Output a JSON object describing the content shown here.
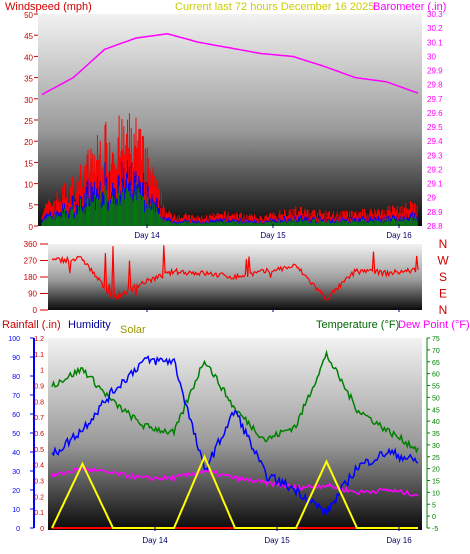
{
  "header": {
    "windspeed_label": "Windspeed (mph)",
    "current_label": "Current last 72 hours December 16 2025",
    "barometer_label": "Barometer (.in)"
  },
  "colors": {
    "wind": "#ff0000",
    "gust_blue": "#0000ff",
    "green": "#008000",
    "barometer": "#ff00ff",
    "temperature": "#008000",
    "dew": "#ff00ff",
    "humidity": "#0000ff",
    "solar": "#ffff00",
    "rain": "#ff0000",
    "title_red": "#cc0000",
    "title_yellow": "#cccc00"
  },
  "panels": {
    "top": {
      "left_ticks": [
        "0",
        "5",
        "10",
        "15",
        "20",
        "25",
        "30",
        "35",
        "40",
        "45",
        "50"
      ],
      "right_ticks": [
        "28.8",
        "28.9",
        "29",
        "29.1",
        "29.2",
        "29.3",
        "29.4",
        "29.5",
        "29.6",
        "29.7",
        "29.8",
        "29.9",
        "30",
        "30.1",
        "30.2",
        "30.3"
      ],
      "day_labels": [
        "Day 14",
        "Day 15",
        "Day 16"
      ]
    },
    "mid": {
      "left_ticks": [
        "0",
        "90",
        "180",
        "270",
        "360"
      ],
      "compass": [
        "N",
        "W",
        "S",
        "E",
        "N"
      ],
      "day_labels": [
        "Day 14",
        "Day 15",
        "Day 16"
      ]
    },
    "bottom": {
      "rain_label": "Rainfall (.in)",
      "humidity_label": "Humidity",
      "solar_label": "Solar",
      "temp_label": "Temperature (°F)",
      "dew_label": "Dew Point (°F)",
      "rain_ticks": [
        "0",
        "0.1",
        "0.2",
        "0.3",
        "0.4",
        "0.5",
        "0.6",
        "0.7",
        "0.8",
        "0.9",
        "1",
        "1.1",
        "1.2"
      ],
      "humidity_ticks": [
        "0",
        "10",
        "20",
        "30",
        "40",
        "50",
        "60",
        "70",
        "80",
        "90",
        "100"
      ],
      "temp_ticks": [
        "-5",
        "0",
        "5",
        "10",
        "15",
        "20",
        "25",
        "30",
        "35",
        "40",
        "45",
        "50",
        "55",
        "60",
        "65",
        "70",
        "75"
      ],
      "day_labels": [
        "Day 14",
        "Day 15",
        "Day 16"
      ]
    }
  },
  "chart_data": [
    {
      "type": "line",
      "title": "Current last 72 hours December 16 2025",
      "x": [
        0,
        6,
        12,
        18,
        24,
        30,
        36,
        42,
        48,
        54,
        60,
        66,
        72
      ],
      "series": [
        {
          "name": "Windspeed (mph)",
          "values": [
            4,
            10,
            20,
            22,
            3,
            2,
            3,
            2,
            4,
            3,
            3,
            4,
            5
          ]
        },
        {
          "name": "Barometer (.in)",
          "values": [
            29.73,
            29.85,
            30.05,
            30.13,
            30.16,
            30.1,
            30.06,
            30.02,
            30.0,
            29.93,
            29.85,
            29.82,
            29.74
          ]
        }
      ],
      "ylim": [
        0,
        50
      ],
      "y2lim": [
        28.8,
        30.3
      ]
    },
    {
      "type": "scatter",
      "series": [
        {
          "name": "Wind direction",
          "values": [
            270,
            280,
            60,
            150,
            210,
            200,
            180,
            210,
            240,
            60,
            220,
            200,
            220
          ]
        }
      ],
      "ylim": [
        0,
        360
      ]
    },
    {
      "type": "line",
      "series": [
        {
          "name": "Temperature (°F)",
          "values": [
            55,
            62,
            48,
            38,
            35,
            66,
            45,
            32,
            38,
            68,
            45,
            36,
            28
          ]
        },
        {
          "name": "Dew Point (°F)",
          "values": [
            17,
            20,
            18,
            16,
            16,
            19,
            16,
            14,
            12,
            13,
            10,
            11,
            9
          ]
        },
        {
          "name": "Humidity",
          "values": [
            38,
            52,
            72,
            88,
            88,
            30,
            62,
            28,
            20,
            8,
            32,
            40,
            35
          ]
        },
        {
          "name": "Solar",
          "values": [
            0,
            27,
            0,
            0,
            0,
            30,
            0,
            0,
            0,
            28,
            0,
            0,
            0
          ]
        },
        {
          "name": "Rainfall (.in)",
          "values": [
            0,
            0,
            0,
            0,
            0,
            0,
            0,
            0,
            0,
            0,
            0,
            0,
            0
          ]
        }
      ],
      "rain_ylim": [
        0,
        1.2
      ],
      "humidity_ylim": [
        0,
        100
      ],
      "temp_ylim": [
        -5,
        75
      ]
    }
  ]
}
